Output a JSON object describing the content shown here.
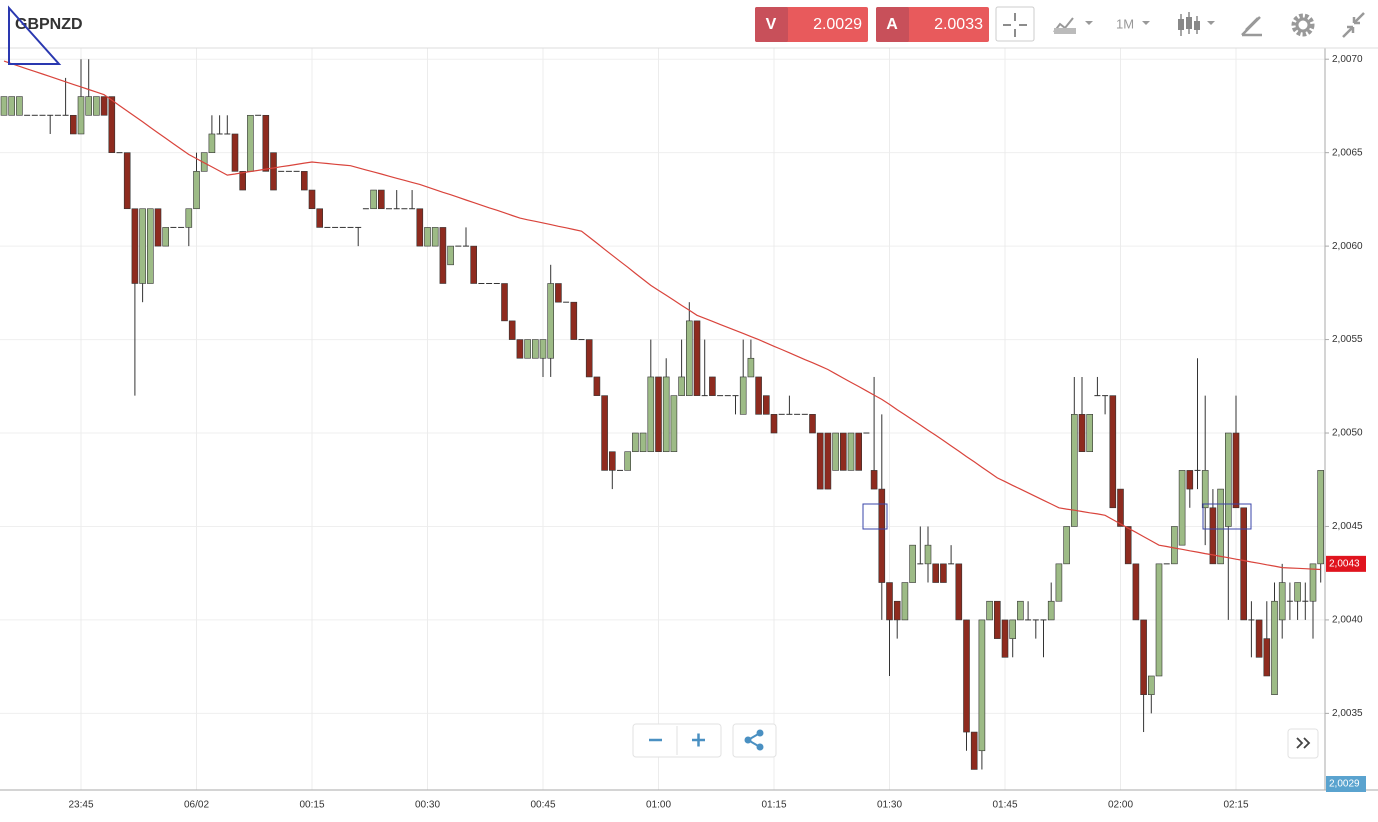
{
  "header": {
    "symbol": "GBPNZD",
    "sell": {
      "label": "V",
      "price": "2.0029"
    },
    "buy": {
      "label": "A",
      "price": "2.0033"
    },
    "timeframe": "1M"
  },
  "chart_data": {
    "type": "candlestick",
    "categories": [
      null,
      null,
      null,
      null,
      null,
      null,
      null,
      null,
      null,
      null,
      "23:45",
      null,
      null,
      null,
      null,
      null,
      null,
      null,
      null,
      null,
      null,
      null,
      null,
      null,
      null,
      "06/02",
      null,
      null,
      null,
      null,
      null,
      null,
      null,
      null,
      null,
      null,
      null,
      null,
      null,
      null,
      "00:15",
      null,
      null,
      null,
      null,
      null,
      null,
      null,
      null,
      null,
      null,
      null,
      null,
      null,
      null,
      "00:30",
      null,
      null,
      null,
      null,
      null,
      null,
      null,
      null,
      null,
      null,
      null,
      null,
      null,
      null,
      "00:45",
      null,
      null,
      null,
      null,
      null,
      null,
      null,
      null,
      null,
      null,
      null,
      null,
      null,
      null,
      "01:00",
      null,
      null,
      null,
      null,
      null,
      null,
      null,
      null,
      null,
      null,
      null,
      null,
      null,
      null,
      "01:15",
      null,
      null,
      null,
      null,
      null,
      null,
      null,
      null,
      null,
      null,
      null,
      null,
      null,
      null,
      "01:30",
      null,
      null,
      null,
      null,
      null,
      null,
      null,
      null,
      null,
      null,
      null,
      null,
      null,
      null,
      "01:45",
      null,
      null,
      null,
      null,
      null,
      null,
      null,
      null,
      null,
      null,
      null,
      null,
      null,
      null,
      "02:00",
      null,
      null,
      null,
      null,
      null,
      null,
      null,
      null,
      null,
      null,
      null,
      null,
      null,
      null,
      "02:15",
      null,
      null,
      null,
      null,
      null,
      null,
      null,
      null,
      null,
      null,
      null
    ],
    "open": [
      2.0067,
      2.0067,
      2.0067,
      2.0067,
      2.0067,
      2.0067,
      2.0067,
      2.0067,
      2.0067,
      2.0067,
      2.0066,
      2.0067,
      2.0067,
      2.0068,
      2.0068,
      2.0065,
      2.0065,
      2.0062,
      2.0058,
      2.0058,
      2.0062,
      2.006,
      2.0061,
      2.0061,
      2.0061,
      2.0062,
      2.0064,
      2.0065,
      2.0066,
      2.0066,
      2.0066,
      2.0064,
      2.0064,
      2.0067,
      2.0067,
      2.0065,
      2.0064,
      2.0064,
      2.0064,
      2.0064,
      2.0063,
      2.0062,
      2.0061,
      2.0061,
      2.0061,
      2.0061,
      2.0061,
      2.0062,
      2.0062,
      2.0063,
      2.0062,
      2.0062,
      2.0062,
      2.0062,
      2.0062,
      2.006,
      2.006,
      2.0061,
      2.0059,
      2.006,
      2.006,
      2.006,
      2.0058,
      2.0058,
      2.0058,
      2.0058,
      2.0056,
      2.0055,
      2.0054,
      2.0054,
      2.0054,
      2.0054,
      2.0058,
      2.0057,
      2.0057,
      2.0055,
      2.0055,
      2.0053,
      2.0052,
      2.0049,
      2.0048,
      2.0048,
      2.0049,
      2.0049,
      2.0049,
      2.0053,
      2.0049,
      2.0049,
      2.0052,
      2.0052,
      2.0056,
      2.0052,
      2.0053,
      2.0052,
      2.0052,
      2.0052,
      2.0051,
      2.0053,
      2.0053,
      2.0052,
      2.0051,
      2.0051,
      2.0051,
      2.0051,
      2.0051,
      2.0051,
      2.005,
      2.005,
      2.0048,
      2.005,
      2.0048,
      2.005,
      2.005,
      2.0048,
      2.0047,
      2.0042,
      2.0041,
      2.004,
      2.0042,
      2.0043,
      2.0043,
      2.0043,
      2.0043,
      2.0043,
      2.0043,
      2.004,
      2.0034,
      2.0033,
      2.004,
      2.0041,
      2.004,
      2.0039,
      2.004,
      2.004,
      2.004,
      2.004,
      2.004,
      2.0041,
      2.0043,
      2.0045,
      2.0051,
      2.0049,
      2.0052,
      2.0052,
      2.0052,
      2.0047,
      2.0045,
      2.0043,
      2.004,
      2.0036,
      2.0037,
      2.0043,
      2.0043,
      2.0044,
      2.0048,
      2.0048,
      2.0046,
      2.0046,
      2.0043,
      2.0045,
      2.005,
      2.0046,
      2.004,
      2.004,
      2.0039,
      2.0036,
      2.004,
      2.0041,
      2.0041,
      2.0041,
      2.0041,
      2.0043
    ],
    "high": [
      2.0068,
      2.0068,
      2.0068,
      2.0067,
      2.0067,
      2.0067,
      2.0067,
      2.0067,
      2.0069,
      2.0067,
      2.007,
      2.007,
      2.0068,
      2.0068,
      2.0068,
      2.0065,
      2.0065,
      2.0062,
      2.0062,
      2.0062,
      2.0062,
      2.0061,
      2.0061,
      2.0061,
      2.0062,
      2.0065,
      2.0065,
      2.0067,
      2.0067,
      2.0067,
      2.0066,
      2.0064,
      2.0067,
      2.0067,
      2.0067,
      2.0065,
      2.0064,
      2.0064,
      2.0064,
      2.0064,
      2.0063,
      2.0062,
      2.0061,
      2.0061,
      2.0061,
      2.0061,
      2.0061,
      2.0062,
      2.0063,
      2.0063,
      2.0062,
      2.0063,
      2.0062,
      2.0063,
      2.0062,
      2.0061,
      2.0061,
      2.0061,
      2.006,
      2.006,
      2.0061,
      2.006,
      2.0058,
      2.0058,
      2.0058,
      2.0058,
      2.0056,
      2.0055,
      2.0055,
      2.0055,
      2.0055,
      2.0059,
      2.0058,
      2.0057,
      2.0057,
      2.0055,
      2.0055,
      2.0053,
      2.0052,
      2.0049,
      2.0048,
      2.0049,
      2.005,
      2.005,
      2.0055,
      2.0053,
      2.0054,
      2.0052,
      2.0055,
      2.0057,
      2.0056,
      2.0055,
      2.0053,
      2.0052,
      2.0052,
      2.0052,
      2.0055,
      2.0055,
      2.0053,
      2.0052,
      2.0051,
      2.0051,
      2.0052,
      2.0051,
      2.0051,
      2.0051,
      2.005,
      2.005,
      2.005,
      2.005,
      2.005,
      2.005,
      2.005,
      2.0053,
      2.0051,
      2.0042,
      2.0041,
      2.0042,
      2.0044,
      2.0045,
      2.0045,
      2.0043,
      2.0043,
      2.0044,
      2.0043,
      2.004,
      2.0034,
      2.004,
      2.0041,
      2.0041,
      2.004,
      2.004,
      2.0041,
      2.0041,
      2.004,
      2.004,
      2.0042,
      2.0043,
      2.0045,
      2.0053,
      2.0053,
      2.0051,
      2.0053,
      2.0052,
      2.0052,
      2.0047,
      2.0045,
      2.0043,
      2.004,
      2.0037,
      2.0043,
      2.0043,
      2.0045,
      2.0048,
      2.0048,
      2.0054,
      2.0052,
      2.0047,
      2.0047,
      2.005,
      2.0052,
      2.0046,
      2.0041,
      2.004,
      2.0041,
      2.0042,
      2.0043,
      2.0042,
      2.0042,
      2.0042,
      2.0043,
      2.0048
    ],
    "low": [
      2.0067,
      2.0067,
      2.0067,
      2.0067,
      2.0067,
      2.0067,
      2.0066,
      2.0067,
      2.0067,
      2.0066,
      2.0066,
      2.0067,
      2.0067,
      2.0067,
      2.0065,
      2.0065,
      2.0062,
      2.0052,
      2.0057,
      2.0058,
      2.006,
      2.006,
      2.0061,
      2.0061,
      2.006,
      2.0062,
      2.0064,
      2.0065,
      2.0066,
      2.0066,
      2.0064,
      2.0063,
      2.0064,
      2.0067,
      2.0064,
      2.0063,
      2.0064,
      2.0064,
      2.0064,
      2.0063,
      2.0062,
      2.0061,
      2.0061,
      2.0061,
      2.0061,
      2.0061,
      2.006,
      2.0062,
      2.0062,
      2.0062,
      2.0062,
      2.0062,
      2.0062,
      2.0062,
      2.006,
      2.006,
      2.006,
      2.0058,
      2.0059,
      2.006,
      2.006,
      2.0058,
      2.0058,
      2.0058,
      2.0058,
      2.0056,
      2.0055,
      2.0054,
      2.0054,
      2.0054,
      2.0053,
      2.0053,
      2.0057,
      2.0057,
      2.0055,
      2.0055,
      2.0053,
      2.0052,
      2.0048,
      2.0047,
      2.0048,
      2.0048,
      2.0049,
      2.0049,
      2.0049,
      2.0049,
      2.0049,
      2.0049,
      2.0052,
      2.0052,
      2.0052,
      2.0052,
      2.0052,
      2.0052,
      2.0052,
      2.0051,
      2.0051,
      2.0053,
      2.0051,
      2.0051,
      2.005,
      2.0051,
      2.0051,
      2.0051,
      2.0051,
      2.005,
      2.0047,
      2.0047,
      2.0048,
      2.0048,
      2.0048,
      2.0048,
      2.005,
      2.0047,
      2.004,
      2.0037,
      2.0039,
      2.004,
      2.0042,
      2.0043,
      2.0042,
      2.0042,
      2.0042,
      2.0043,
      2.004,
      2.0033,
      2.0032,
      2.0032,
      2.004,
      2.0039,
      2.0038,
      2.0038,
      2.004,
      2.004,
      2.0039,
      2.0038,
      2.004,
      2.0041,
      2.0043,
      2.0045,
      2.0049,
      2.0049,
      2.0052,
      2.0051,
      2.0046,
      2.0045,
      2.0043,
      2.004,
      2.0034,
      2.0035,
      2.0037,
      2.0043,
      2.0043,
      2.0044,
      2.0046,
      2.0047,
      2.0044,
      2.0043,
      2.0043,
      2.004,
      2.0046,
      2.004,
      2.0038,
      2.0038,
      2.0037,
      2.0036,
      2.0039,
      2.004,
      2.004,
      2.004,
      2.0039,
      2.0042
    ],
    "close": [
      2.0068,
      2.0068,
      2.0068,
      2.0067,
      2.0067,
      2.0067,
      2.0067,
      2.0067,
      2.0067,
      2.0066,
      2.0068,
      2.0068,
      2.0068,
      2.0067,
      2.0065,
      2.0065,
      2.0062,
      2.0058,
      2.0062,
      2.0062,
      2.006,
      2.0061,
      2.0061,
      2.0061,
      2.0062,
      2.0064,
      2.0065,
      2.0066,
      2.0066,
      2.0066,
      2.0064,
      2.0063,
      2.0067,
      2.0067,
      2.0064,
      2.0063,
      2.0064,
      2.0064,
      2.0064,
      2.0063,
      2.0062,
      2.0061,
      2.0061,
      2.0061,
      2.0061,
      2.0061,
      2.0061,
      2.0062,
      2.0063,
      2.0062,
      2.0062,
      2.0062,
      2.0062,
      2.0062,
      2.006,
      2.0061,
      2.0061,
      2.0058,
      2.006,
      2.006,
      2.006,
      2.0058,
      2.0058,
      2.0058,
      2.0058,
      2.0056,
      2.0055,
      2.0054,
      2.0055,
      2.0055,
      2.0055,
      2.0058,
      2.0057,
      2.0057,
      2.0055,
      2.0055,
      2.0053,
      2.0052,
      2.0048,
      2.0048,
      2.0048,
      2.0049,
      2.005,
      2.005,
      2.0053,
      2.0049,
      2.0053,
      2.0052,
      2.0053,
      2.0056,
      2.0052,
      2.0052,
      2.0052,
      2.0052,
      2.0052,
      2.0052,
      2.0053,
      2.0054,
      2.0051,
      2.0051,
      2.005,
      2.0051,
      2.0051,
      2.0051,
      2.0051,
      2.005,
      2.0047,
      2.0047,
      2.005,
      2.0048,
      2.005,
      2.0048,
      2.005,
      2.0047,
      2.0042,
      2.004,
      2.004,
      2.0042,
      2.0044,
      2.0043,
      2.0044,
      2.0042,
      2.0042,
      2.0043,
      2.004,
      2.0034,
      2.0032,
      2.004,
      2.0041,
      2.0039,
      2.0038,
      2.004,
      2.0041,
      2.004,
      2.004,
      2.004,
      2.0041,
      2.0043,
      2.0045,
      2.0051,
      2.0049,
      2.0051,
      2.0052,
      2.0052,
      2.0046,
      2.0045,
      2.0043,
      2.004,
      2.0036,
      2.0037,
      2.0043,
      2.0043,
      2.0045,
      2.0048,
      2.0047,
      2.0048,
      2.0048,
      2.0043,
      2.0047,
      2.005,
      2.0046,
      2.004,
      2.004,
      2.0038,
      2.0037,
      2.0041,
      2.0042,
      2.0041,
      2.0042,
      2.0041,
      2.0043,
      2.0048
    ],
    "up_color": "#9dbb86",
    "down_color": "#8e2b1f",
    "wick_color": "#333333",
    "ma": {
      "color": "#d9443c",
      "values": [
        2.00699,
        2.006976,
        2.006962,
        2.006948,
        2.006935,
        2.006921,
        2.006907,
        2.006893,
        2.006879,
        2.006865,
        2.006852,
        2.006838,
        2.006824,
        2.00681,
        2.006781,
        2.006752,
        2.006723,
        2.006694,
        2.006665,
        2.006635,
        2.006606,
        2.006577,
        2.006548,
        2.006519,
        2.00649,
        2.006468,
        2.006446,
        2.006424,
        2.006402,
        2.00638,
        2.006386,
        2.006393,
        2.006399,
        2.006405,
        2.006412,
        2.006418,
        2.006425,
        2.006431,
        2.006437,
        2.006444,
        2.00645,
        2.006446,
        2.006442,
        2.006438,
        2.006434,
        2.00643,
        2.006419,
        2.006408,
        2.006397,
        2.006386,
        2.006374,
        2.006363,
        2.006352,
        2.006341,
        2.00633,
        2.006316,
        2.006302,
        2.006288,
        2.006275,
        2.006261,
        2.006247,
        2.006233,
        2.006219,
        2.006205,
        2.006192,
        2.006178,
        2.006164,
        2.00615,
        2.006141,
        2.006133,
        2.006124,
        2.006115,
        2.006106,
        2.006098,
        2.006089,
        2.00608,
        2.006048,
        2.006016,
        2.005983,
        2.005951,
        2.005919,
        2.005887,
        2.005854,
        2.005822,
        2.00579,
        2.005763,
        2.005737,
        2.00571,
        2.005683,
        2.005657,
        2.00563,
        2.005614,
        2.005598,
        2.005581,
        2.005565,
        2.005549,
        2.005533,
        2.005516,
        2.0055,
        2.005482,
        2.005464,
        2.005447,
        2.005429,
        2.005411,
        2.005393,
        2.005376,
        2.005358,
        2.00534,
        2.005317,
        2.005294,
        2.005271,
        2.005249,
        2.005226,
        2.005203,
        2.00518,
        2.005153,
        2.005125,
        2.005098,
        2.00507,
        2.005043,
        2.005015,
        2.004988,
        2.00496,
        2.004931,
        2.004903,
        2.004874,
        2.004846,
        2.004817,
        2.004789,
        2.00476,
        2.00474,
        2.00472,
        2.0047,
        2.00468,
        2.00466,
        2.00464,
        2.00462,
        2.0046,
        2.004593,
        2.004587,
        2.00458,
        2.004573,
        2.004567,
        2.00456,
        2.004537,
        2.004514,
        2.004491,
        2.004469,
        2.004446,
        2.004423,
        2.0044,
        2.004393,
        2.004385,
        2.004378,
        2.00437,
        2.004363,
        2.004355,
        2.004348,
        2.00434,
        2.004333,
        2.004325,
        2.004318,
        2.00431,
        2.004303,
        2.004295,
        2.004288,
        2.00428,
        2.004278,
        2.004276,
        2.004274,
        2.004272,
        2.00427
      ]
    },
    "ylim": [
      2.00309,
      2.00706
    ],
    "yticks": [
      {
        "value": 2.007,
        "label": "2,0070"
      },
      {
        "value": 2.0065,
        "label": "2,0065"
      },
      {
        "value": 2.006,
        "label": "2,0060"
      },
      {
        "value": 2.0055,
        "label": "2,0055"
      },
      {
        "value": 2.005,
        "label": "2,0050"
      },
      {
        "value": 2.0045,
        "label": "2,0045"
      },
      {
        "value": 2.004,
        "label": "2,0040"
      },
      {
        "value": 2.0035,
        "label": "2,0035"
      }
    ],
    "grid": true,
    "last_price": {
      "value": 2.0043,
      "label": "2,0043",
      "color": "#e0141e"
    },
    "bid_label": {
      "label": "2,0029",
      "color": "#5aa3cf"
    }
  }
}
